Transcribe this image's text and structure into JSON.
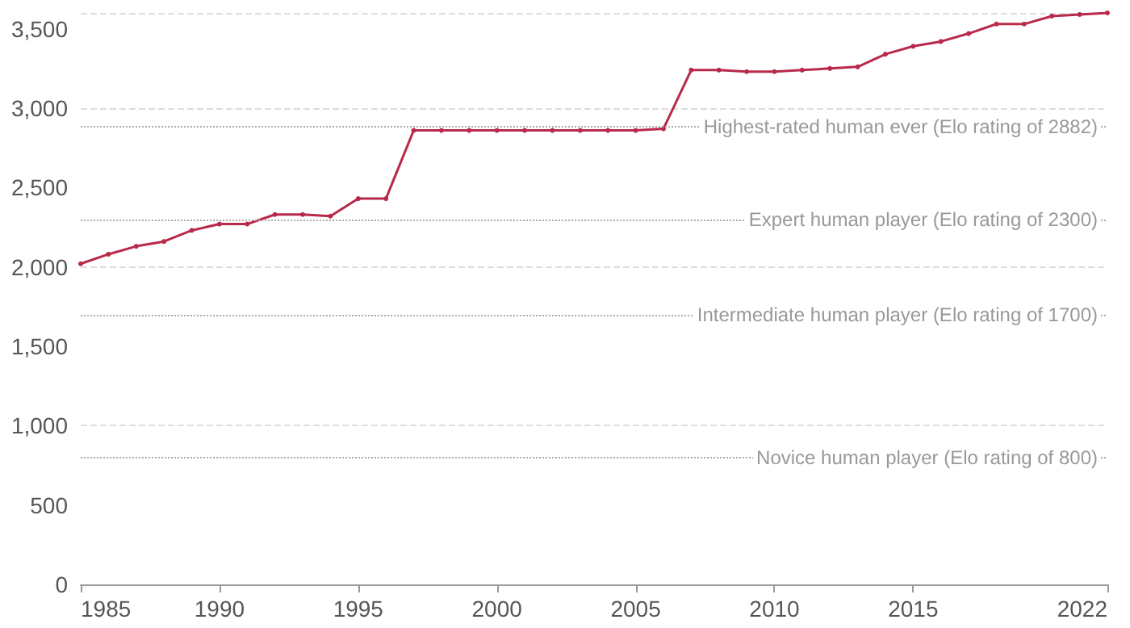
{
  "chart_data": {
    "type": "line",
    "x": [
      1985,
      1986,
      1987,
      1988,
      1989,
      1990,
      1991,
      1992,
      1993,
      1994,
      1995,
      1996,
      1997,
      1998,
      1999,
      2000,
      2001,
      2002,
      2003,
      2004,
      2005,
      2006,
      2007,
      2008,
      2009,
      2010,
      2011,
      2012,
      2013,
      2014,
      2015,
      2016,
      2017,
      2018,
      2019,
      2020,
      2021,
      2022
    ],
    "series": [
      {
        "color": "#b8294a",
        "values": [
          2020,
          2080,
          2130,
          2160,
          2230,
          2270,
          2270,
          2330,
          2330,
          2320,
          2430,
          2430,
          2860,
          2860,
          2860,
          2860,
          2860,
          2860,
          2860,
          2860,
          2860,
          2870,
          3240,
          3240,
          3230,
          3230,
          3240,
          3250,
          3260,
          3340,
          3390,
          3420,
          3470,
          3530,
          3530,
          3580,
          3590,
          3600
        ]
      }
    ],
    "xlim": [
      1985,
      2022
    ],
    "xticks": [
      1985,
      1990,
      1995,
      2000,
      2005,
      2010,
      2015,
      2022
    ],
    "ylim": [
      0,
      3600
    ],
    "yticks": [
      0,
      500,
      {
        "value": 1000,
        "label": "1,000"
      },
      {
        "value": 1500,
        "label": "1,500"
      },
      {
        "value": 2000,
        "label": "2,000"
      },
      {
        "value": 2500,
        "label": "2,500"
      },
      {
        "value": 3000,
        "label": "3,000"
      },
      {
        "value": 3500,
        "label": "3,500"
      }
    ],
    "grid": "y",
    "marker": "circle",
    "line_style": "solid",
    "ref_lines": [
      {
        "axis": "y",
        "value": 2882,
        "label": "Highest-rated human ever (Elo rating of 2882)",
        "color": "#aaaaaa",
        "line_style": "dotted"
      },
      {
        "axis": "y",
        "value": 2300,
        "label": "Expert human player (Elo rating of 2300)",
        "color": "#aaaaaa",
        "line_style": "dotted"
      },
      {
        "axis": "y",
        "value": 1700,
        "label": "Intermediate human player (Elo rating of 1700)",
        "color": "#aaaaaa",
        "line_style": "dotted"
      },
      {
        "axis": "y",
        "value": 800,
        "label": "Novice human player (Elo rating of 800)",
        "color": "#aaaaaa",
        "line_style": "dotted"
      }
    ]
  }
}
